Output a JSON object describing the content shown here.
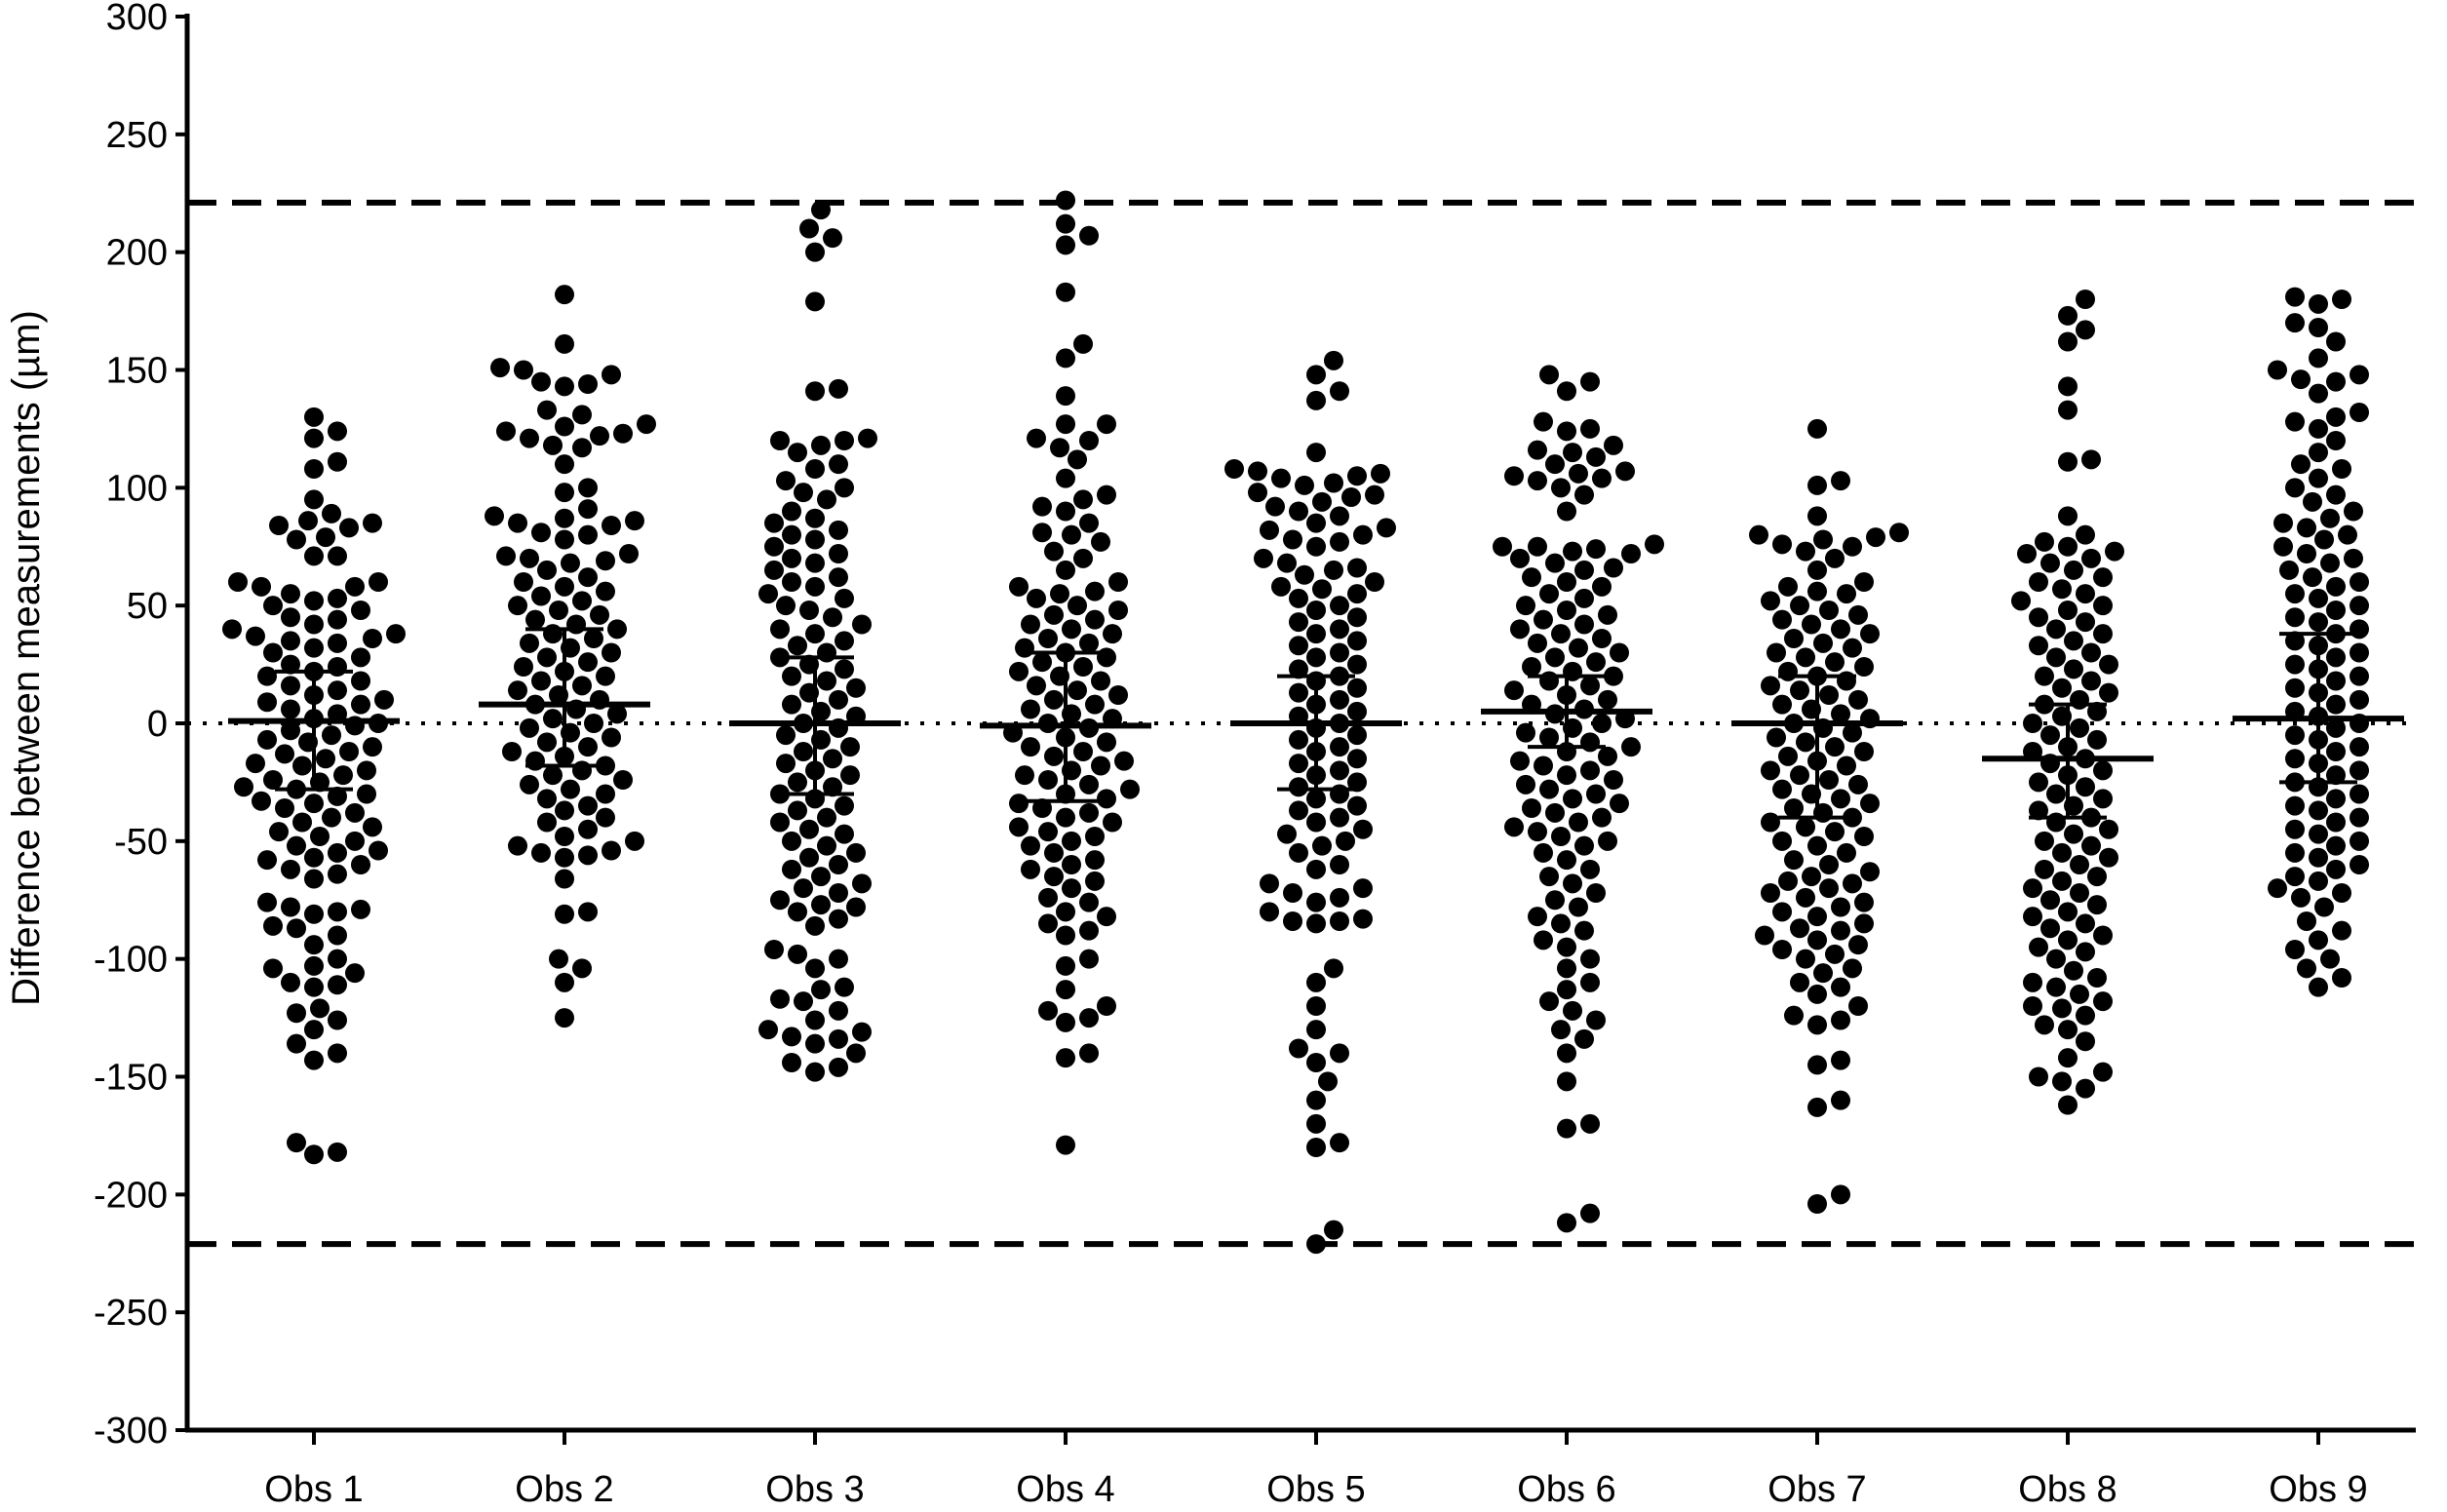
{
  "chart_data": {
    "type": "scatter",
    "subtype": "beeswarm",
    "title": "",
    "xlabel": "",
    "ylabel": "Difference between measurements (µm)",
    "ylim": [
      -300,
      300
    ],
    "yticks": [
      300,
      250,
      200,
      150,
      100,
      50,
      0,
      -50,
      -100,
      -150,
      -200,
      -250,
      -300
    ],
    "categories": [
      "Obs 1",
      "Obs 2",
      "Obs 3",
      "Obs 4",
      "Obs 5",
      "Obs 6",
      "Obs 7",
      "Obs 8",
      "Obs 9"
    ],
    "grid": false,
    "legend": "none",
    "reference_lines": [
      {
        "y": 221,
        "style": "dashed"
      },
      {
        "y": -221,
        "style": "dashed"
      },
      {
        "y": 0,
        "style": "dotted"
      }
    ],
    "series": [
      {
        "category": "Obs 1",
        "mean": 1,
        "sd_upper": 22,
        "sd_lower": -28,
        "values": [
          130,
          124,
          121,
          111,
          108,
          89,
          86,
          85,
          84,
          83,
          79,
          78,
          71,
          71,
          95,
          60,
          60,
          58,
          58,
          55,
          53,
          52,
          50,
          48,
          45,
          44,
          42,
          40,
          38,
          37,
          36,
          35,
          34,
          32,
          30,
          28,
          25,
          24,
          22,
          20,
          18,
          16,
          14,
          12,
          10,
          9,
          8,
          6,
          4,
          2,
          0,
          -1,
          -3,
          -5,
          -7,
          -8,
          -10,
          -12,
          -13,
          -15,
          -17,
          -18,
          -20,
          -22,
          -24,
          -25,
          -27,
          -28,
          -30,
          -31,
          -33,
          -34,
          -36,
          -38,
          -40,
          -42,
          -44,
          -46,
          -48,
          -50,
          -52,
          -54,
          -55,
          -57,
          -58,
          -60,
          -62,
          -64,
          -66,
          -76,
          -78,
          -79,
          -80,
          -81,
          -86,
          -87,
          -90,
          -94,
          -100,
          -103,
          -104,
          -106,
          -110,
          -111,
          -112,
          -121,
          -123,
          -126,
          -130,
          -136,
          -140,
          -143,
          -178,
          -182,
          -183
        ]
      },
      {
        "category": "Obs 2",
        "mean": 8,
        "sd_upper": 40,
        "sd_lower": -18,
        "values": [
          182,
          161,
          151,
          150,
          148,
          145,
          144,
          143,
          133,
          131,
          127,
          126,
          124,
          123,
          122,
          121,
          118,
          117,
          110,
          100,
          98,
          91,
          88,
          87,
          86,
          85,
          84,
          81,
          80,
          78,
          72,
          71,
          70,
          69,
          68,
          65,
          62,
          60,
          58,
          56,
          54,
          52,
          50,
          48,
          46,
          44,
          42,
          40,
          38,
          36,
          34,
          32,
          30,
          28,
          26,
          24,
          22,
          20,
          18,
          16,
          14,
          12,
          10,
          8,
          6,
          4,
          2,
          0,
          -2,
          -4,
          -6,
          -8,
          -10,
          -12,
          -14,
          -16,
          -18,
          -20,
          -22,
          -24,
          -26,
          -28,
          -30,
          -32,
          -35,
          -37,
          -40,
          -42,
          -45,
          -48,
          -50,
          -52,
          -54,
          -55,
          -56,
          -57,
          -66,
          -80,
          -81,
          -100,
          -104,
          -110,
          -125
        ]
      },
      {
        "category": "Obs 3",
        "mean": 0,
        "sd_upper": 28,
        "sd_lower": -30,
        "values": [
          218,
          210,
          206,
          200,
          179,
          142,
          141,
          121,
          120,
          120,
          118,
          115,
          110,
          108,
          103,
          100,
          98,
          95,
          90,
          87,
          85,
          82,
          80,
          78,
          75,
          72,
          70,
          68,
          65,
          62,
          60,
          58,
          55,
          53,
          50,
          48,
          45,
          42,
          40,
          38,
          35,
          33,
          30,
          28,
          25,
          23,
          20,
          18,
          15,
          13,
          10,
          8,
          5,
          3,
          0,
          -2,
          -5,
          -7,
          -10,
          -12,
          -15,
          -17,
          -20,
          -22,
          -25,
          -27,
          -30,
          -32,
          -35,
          -37,
          -40,
          -42,
          -45,
          -47,
          -50,
          -52,
          -55,
          -57,
          -60,
          -62,
          -65,
          -68,
          -70,
          -72,
          -75,
          -77,
          -78,
          -80,
          -83,
          -86,
          -96,
          -98,
          -100,
          -104,
          -112,
          -113,
          -117,
          -118,
          -122,
          -126,
          -130,
          -131,
          -133,
          -134,
          -136,
          -140,
          -144,
          -146,
          -148
        ]
      },
      {
        "category": "Obs 4",
        "mean": -1,
        "sd_upper": 30,
        "sd_lower": -33,
        "values": [
          222,
          212,
          207,
          203,
          183,
          161,
          155,
          139,
          127,
          127,
          121,
          120,
          117,
          112,
          104,
          97,
          95,
          92,
          90,
          85,
          81,
          80,
          77,
          73,
          70,
          65,
          60,
          58,
          56,
          55,
          53,
          50,
          48,
          46,
          44,
          42,
          40,
          38,
          36,
          34,
          32,
          30,
          28,
          26,
          24,
          22,
          20,
          18,
          16,
          14,
          12,
          10,
          8,
          6,
          4,
          2,
          0,
          -2,
          -4,
          -6,
          -8,
          -10,
          -12,
          -14,
          -16,
          -18,
          -20,
          -22,
          -24,
          -26,
          -28,
          -30,
          -32,
          -34,
          -36,
          -38,
          -40,
          -42,
          -44,
          -46,
          -48,
          -50,
          -52,
          -55,
          -58,
          -60,
          -62,
          -65,
          -67,
          -70,
          -74,
          -76,
          -80,
          -82,
          -85,
          -88,
          -90,
          -100,
          -103,
          -113,
          -120,
          -122,
          -125,
          -127,
          -140,
          -142,
          -179
        ]
      },
      {
        "category": "Obs 5",
        "mean": 0,
        "sd_upper": 20,
        "sd_lower": -28,
        "values": [
          154,
          148,
          141,
          137,
          115,
          108,
          107,
          106,
          105,
          104,
          102,
          101,
          98,
          97,
          96,
          94,
          92,
          90,
          88,
          85,
          83,
          82,
          80,
          78,
          77,
          75,
          70,
          68,
          66,
          65,
          63,
          60,
          58,
          57,
          55,
          53,
          50,
          48,
          45,
          43,
          40,
          38,
          35,
          33,
          30,
          28,
          25,
          23,
          20,
          18,
          15,
          13,
          10,
          8,
          5,
          3,
          0,
          -2,
          -5,
          -7,
          -10,
          -12,
          -15,
          -17,
          -20,
          -22,
          -25,
          -27,
          -30,
          -32,
          -35,
          -37,
          -40,
          -42,
          -45,
          -47,
          -50,
          -52,
          -55,
          -60,
          -62,
          -68,
          -70,
          -72,
          -74,
          -76,
          -80,
          -83,
          -84,
          -84,
          -85,
          -104,
          -110,
          -120,
          -130,
          -138,
          -140,
          -144,
          -152,
          -160,
          -170,
          -178,
          -180,
          -215,
          -221
        ]
      },
      {
        "category": "Obs 6",
        "mean": 5,
        "sd_upper": 20,
        "sd_lower": -10,
        "values": [
          148,
          145,
          141,
          128,
          125,
          124,
          118,
          116,
          115,
          113,
          110,
          107,
          106,
          105,
          104,
          103,
          100,
          97,
          90,
          76,
          75,
          75,
          74,
          73,
          72,
          70,
          68,
          66,
          65,
          62,
          60,
          58,
          55,
          53,
          50,
          48,
          46,
          44,
          42,
          40,
          38,
          36,
          34,
          32,
          30,
          28,
          26,
          24,
          22,
          20,
          18,
          16,
          14,
          12,
          10,
          8,
          6,
          4,
          2,
          0,
          -2,
          -4,
          -6,
          -8,
          -10,
          -12,
          -14,
          -16,
          -18,
          -20,
          -22,
          -24,
          -26,
          -28,
          -30,
          -32,
          -34,
          -36,
          -38,
          -40,
          -42,
          -44,
          -46,
          -48,
          -50,
          -52,
          -55,
          -58,
          -62,
          -65,
          -68,
          -72,
          -75,
          -78,
          -82,
          -85,
          -88,
          -92,
          -95,
          -100,
          -104,
          -110,
          -113,
          -118,
          -122,
          -126,
          -130,
          -134,
          -140,
          -152,
          -170,
          -172,
          -208,
          -212
        ]
      },
      {
        "category": "Obs 7",
        "mean": 0,
        "sd_upper": 20,
        "sd_lower": -40,
        "values": [
          125,
          103,
          101,
          88,
          81,
          80,
          79,
          78,
          76,
          75,
          73,
          70,
          65,
          60,
          58,
          56,
          55,
          52,
          50,
          48,
          46,
          44,
          42,
          40,
          38,
          36,
          34,
          32,
          30,
          28,
          26,
          24,
          22,
          20,
          18,
          16,
          14,
          12,
          10,
          8,
          6,
          4,
          2,
          0,
          -2,
          -4,
          -6,
          -8,
          -10,
          -12,
          -14,
          -16,
          -18,
          -20,
          -22,
          -24,
          -26,
          -28,
          -30,
          -32,
          -34,
          -36,
          -38,
          -40,
          -42,
          -44,
          -46,
          -48,
          -50,
          -52,
          -55,
          -58,
          -60,
          -63,
          -65,
          -67,
          -68,
          -70,
          -72,
          -74,
          -76,
          -78,
          -80,
          -82,
          -85,
          -87,
          -88,
          -90,
          -92,
          -94,
          -96,
          -98,
          -100,
          -104,
          -106,
          -110,
          -112,
          -115,
          -120,
          -124,
          -126,
          -128,
          -143,
          -145,
          -160,
          -163,
          -200,
          -204
        ]
      },
      {
        "category": "Obs 8",
        "mean": -15,
        "sd_upper": 8,
        "sd_lower": -40,
        "values": [
          180,
          173,
          167,
          162,
          143,
          133,
          112,
          111,
          88,
          80,
          77,
          75,
          73,
          72,
          70,
          68,
          65,
          62,
          60,
          57,
          55,
          52,
          50,
          48,
          45,
          43,
          40,
          38,
          35,
          33,
          30,
          28,
          25,
          23,
          20,
          18,
          15,
          13,
          10,
          8,
          5,
          3,
          0,
          -2,
          -5,
          -7,
          -10,
          -12,
          -15,
          -17,
          -20,
          -22,
          -25,
          -27,
          -30,
          -32,
          -35,
          -37,
          -40,
          -42,
          -45,
          -47,
          -50,
          -52,
          -55,
          -57,
          -60,
          -62,
          -65,
          -67,
          -70,
          -72,
          -75,
          -77,
          -80,
          -82,
          -85,
          -87,
          -90,
          -92,
          -95,
          -97,
          -100,
          -105,
          -108,
          -110,
          -112,
          -115,
          -118,
          -120,
          -121,
          -124,
          -128,
          -130,
          -135,
          -142,
          -148,
          -150,
          -152,
          -155,
          -162
        ]
      },
      {
        "category": "Obs 9",
        "mean": 2,
        "sd_upper": 38,
        "sd_lower": -25,
        "values": [
          181,
          180,
          178,
          170,
          168,
          162,
          155,
          150,
          148,
          146,
          145,
          140,
          132,
          130,
          128,
          125,
          120,
          115,
          110,
          108,
          104,
          100,
          97,
          94,
          90,
          87,
          85,
          83,
          80,
          78,
          75,
          72,
          70,
          68,
          65,
          62,
          60,
          58,
          55,
          53,
          50,
          48,
          45,
          43,
          40,
          38,
          35,
          33,
          30,
          28,
          25,
          23,
          20,
          18,
          15,
          13,
          10,
          8,
          5,
          3,
          0,
          -2,
          -5,
          -7,
          -10,
          -12,
          -15,
          -17,
          -20,
          -22,
          -25,
          -27,
          -30,
          -32,
          -35,
          -37,
          -40,
          -42,
          -45,
          -47,
          -50,
          -52,
          -55,
          -57,
          -60,
          -62,
          -65,
          -67,
          -70,
          -72,
          -74,
          -78,
          -84,
          -88,
          -92,
          -96,
          -100,
          -104,
          -108,
          -112
        ]
      }
    ]
  }
}
